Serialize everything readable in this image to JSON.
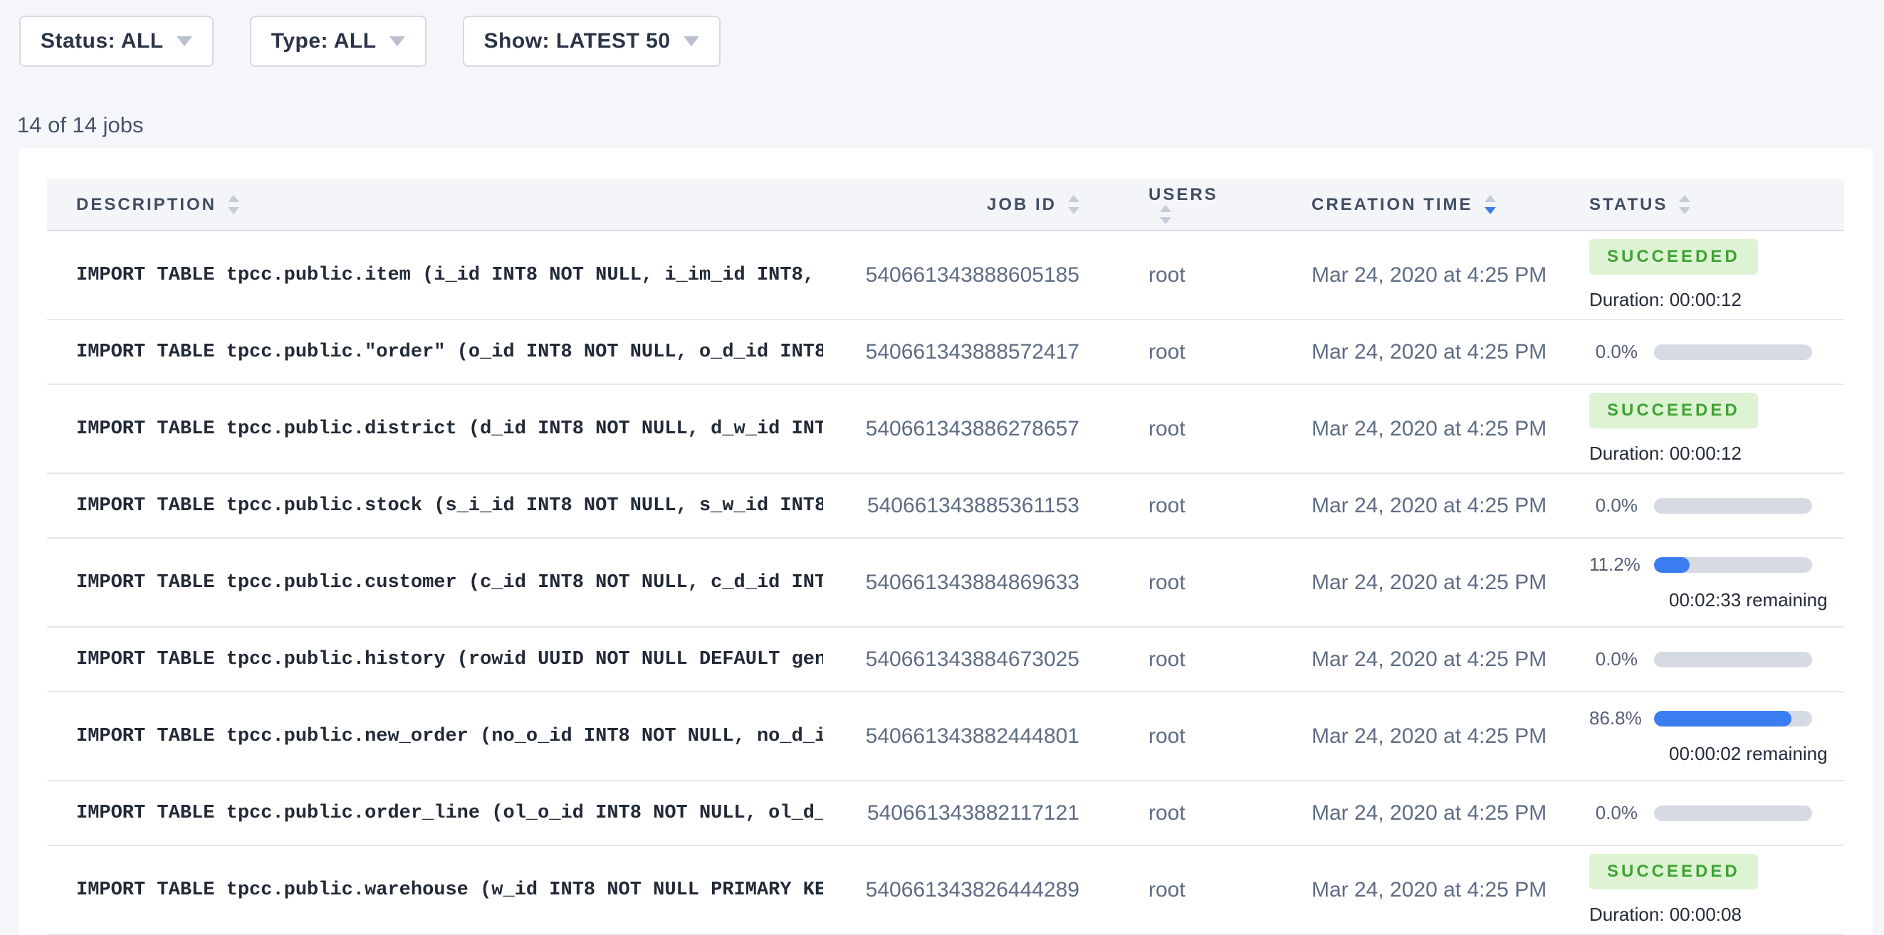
{
  "filters": [
    {
      "label": "Status: ALL"
    },
    {
      "label": "Type: ALL"
    },
    {
      "label": "Show: LATEST 50"
    }
  ],
  "summary": {
    "jobs_count": "14 of 14 jobs"
  },
  "colors": {
    "accent_blue": "#3a7df1",
    "success_bg": "#ddf3d4",
    "success_fg": "#3fa233",
    "track_gray": "#d6dae3",
    "page_bg": "#f4f6fa"
  },
  "table": {
    "columns": [
      "DESCRIPTION",
      "JOB ID",
      "USERS",
      "CREATION TIME",
      "STATUS"
    ],
    "sort": {
      "column": "CREATION TIME",
      "direction": "desc"
    },
    "rows": [
      {
        "description": "IMPORT TABLE tpcc.public.item (i_id INT8 NOT NULL, i_im_id INT8, …",
        "job_id": "540661343888605185",
        "user": "root",
        "creation_time": "Mar 24, 2020 at 4:25 PM",
        "status": {
          "state": "succeeded",
          "label": "SUCCEEDED",
          "duration": "Duration: 00:00:12"
        }
      },
      {
        "description": "IMPORT TABLE tpcc.public.\"order\" (o_id INT8 NOT NULL, o_d_id INT8…",
        "job_id": "540661343888572417",
        "user": "root",
        "creation_time": "Mar 24, 2020 at 4:25 PM",
        "status": {
          "state": "running",
          "percent": "0.0%",
          "fraction": 0.0
        }
      },
      {
        "description": "IMPORT TABLE tpcc.public.district (d_id INT8 NOT NULL, d_w_id INT…",
        "job_id": "540661343886278657",
        "user": "root",
        "creation_time": "Mar 24, 2020 at 4:25 PM",
        "status": {
          "state": "succeeded",
          "label": "SUCCEEDED",
          "duration": "Duration: 00:00:12"
        }
      },
      {
        "description": "IMPORT TABLE tpcc.public.stock (s_i_id INT8 NOT NULL, s_w_id INT8…",
        "job_id": "540661343885361153",
        "user": "root",
        "creation_time": "Mar 24, 2020 at 4:25 PM",
        "status": {
          "state": "running",
          "percent": "0.0%",
          "fraction": 0.0
        }
      },
      {
        "description": "IMPORT TABLE tpcc.public.customer (c_id INT8 NOT NULL, c_d_id INT…",
        "job_id": "540661343884869633",
        "user": "root",
        "creation_time": "Mar 24, 2020 at 4:25 PM",
        "status": {
          "state": "running",
          "percent": "11.2%",
          "fraction": 0.112,
          "remaining": "00:02:33 remaining"
        }
      },
      {
        "description": "IMPORT TABLE tpcc.public.history (rowid UUID NOT NULL DEFAULT gen…",
        "job_id": "540661343884673025",
        "user": "root",
        "creation_time": "Mar 24, 2020 at 4:25 PM",
        "status": {
          "state": "running",
          "percent": "0.0%",
          "fraction": 0.0
        }
      },
      {
        "description": "IMPORT TABLE tpcc.public.new_order (no_o_id INT8 NOT NULL, no_d_i…",
        "job_id": "540661343882444801",
        "user": "root",
        "creation_time": "Mar 24, 2020 at 4:25 PM",
        "status": {
          "state": "running",
          "percent": "86.8%",
          "fraction": 0.868,
          "remaining": "00:00:02 remaining"
        }
      },
      {
        "description": "IMPORT TABLE tpcc.public.order_line (ol_o_id INT8 NOT NULL, ol_d_…",
        "job_id": "540661343882117121",
        "user": "root",
        "creation_time": "Mar 24, 2020 at 4:25 PM",
        "status": {
          "state": "running",
          "percent": "0.0%",
          "fraction": 0.0
        }
      },
      {
        "description": "IMPORT TABLE tpcc.public.warehouse (w_id INT8 NOT NULL PRIMARY KE…",
        "job_id": "540661343826444289",
        "user": "root",
        "creation_time": "Mar 24, 2020 at 4:25 PM",
        "status": {
          "state": "succeeded",
          "label": "SUCCEEDED",
          "duration": "Duration: 00:00:08"
        }
      }
    ]
  }
}
